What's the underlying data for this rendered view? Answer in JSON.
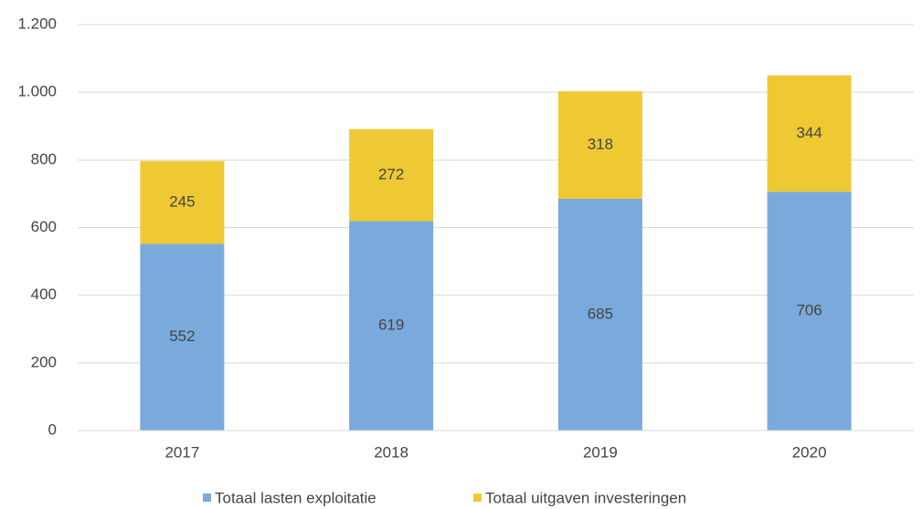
{
  "chart_data": {
    "type": "stacked_bar",
    "categories": [
      "2017",
      "2018",
      "2019",
      "2020"
    ],
    "series": [
      {
        "name": "Totaal lasten exploitatie",
        "color": "#7aaadc",
        "values": [
          552,
          619,
          685,
          706
        ]
      },
      {
        "name": "Totaal uitgaven investeringen",
        "color": "#efc934",
        "values": [
          245,
          272,
          318,
          344
        ]
      }
    ],
    "ylim": [
      0,
      1200
    ],
    "yticks": [
      0,
      200,
      400,
      600,
      800,
      {
        "value": 1000,
        "label": "1.000"
      },
      {
        "value": 1200,
        "label": "1.200"
      }
    ],
    "grid": true,
    "legend": "bottom"
  }
}
